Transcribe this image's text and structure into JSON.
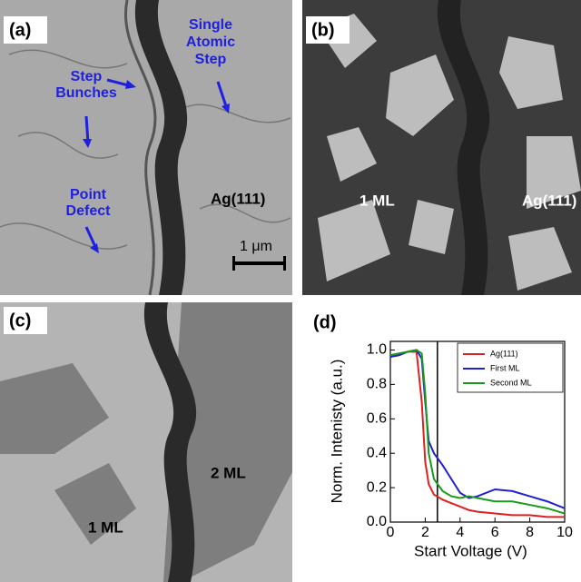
{
  "panels": [
    {
      "label": "(a)",
      "step_bunches": "Step Bunches",
      "single_step": "Single Atomic Step",
      "point_defect": "Point Defect",
      "surface": "Ag(111)",
      "scale_bar": "1 μm"
    },
    {
      "label": "(b)",
      "layer": "1 ML",
      "surface": "Ag(111)"
    },
    {
      "label": "(c)",
      "second_layer": "2 ML",
      "layer": "1 ML"
    }
  ],
  "chart_data": {
    "type": "line",
    "label": "(d)",
    "x_label": "Start Voltage (V)",
    "y_label": "Norm. Intenisty (a.u.)",
    "x": [
      0,
      0.5,
      1,
      1.5,
      1.8,
      2,
      2.2,
      2.5,
      3,
      3.5,
      4,
      4.5,
      5,
      6,
      7,
      8,
      9,
      10
    ],
    "series": [
      {
        "name": "Ag(111)",
        "color": "#e02020",
        "values": [
          0.96,
          0.97,
          0.99,
          0.99,
          0.7,
          0.35,
          0.22,
          0.16,
          0.13,
          0.11,
          0.09,
          0.07,
          0.06,
          0.05,
          0.04,
          0.04,
          0.03,
          0.03
        ]
      },
      {
        "name": "First ML",
        "color": "#2020d0",
        "values": [
          0.96,
          0.97,
          0.99,
          1.0,
          0.95,
          0.7,
          0.47,
          0.4,
          0.33,
          0.25,
          0.17,
          0.14,
          0.15,
          0.19,
          0.18,
          0.15,
          0.12,
          0.08
        ]
      },
      {
        "name": "Second ML",
        "color": "#1a9a1a",
        "values": [
          0.97,
          0.98,
          0.99,
          1.0,
          0.98,
          0.75,
          0.4,
          0.25,
          0.18,
          0.15,
          0.14,
          0.15,
          0.14,
          0.12,
          0.12,
          0.1,
          0.08,
          0.05
        ]
      }
    ],
    "vertical_line": 2.7,
    "xlim": [
      0,
      10
    ],
    "ylim": [
      0,
      1.05
    ],
    "xticks": [
      0,
      2,
      4,
      6,
      8,
      10
    ],
    "yticks": [
      {
        "value": 0,
        "label": "0.0"
      },
      0.2,
      0.4,
      0.6,
      0.8,
      {
        "value": 1,
        "label": "1.0"
      }
    ],
    "legend": "upper right"
  }
}
